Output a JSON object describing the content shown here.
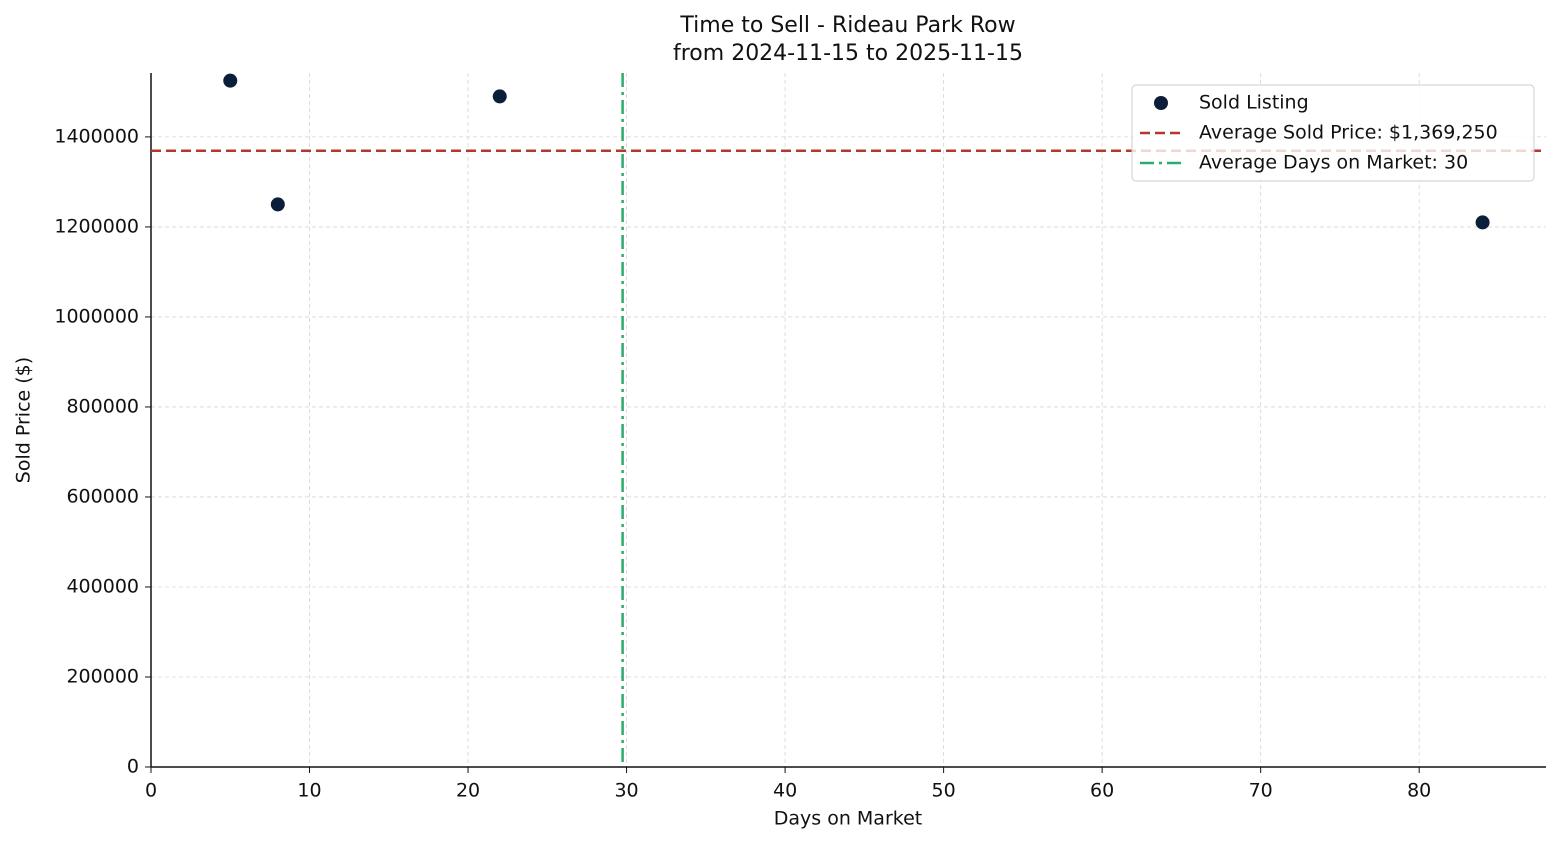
{
  "chart_data": {
    "type": "scatter",
    "title": "Time to Sell - Rideau Park Row",
    "subtitle": "from 2024-11-15 to 2025-11-15",
    "x_label": "Days on Market",
    "y_label": "Sold Price ($)",
    "series": [
      {
        "name": "Sold Listing",
        "color": "#0b1f3a",
        "x": [
          5,
          8,
          22,
          84
        ],
        "values": [
          1525000,
          1250000,
          1490000,
          1210000
        ]
      }
    ],
    "hlines": [
      {
        "value": 1369250,
        "label": "Average Sold Price: $1,369,250",
        "color": "#b5392a",
        "style": "dashed"
      }
    ],
    "vlines": [
      {
        "value": 29.75,
        "label": "Average Days on Market: 30",
        "color": "#2eaa6b",
        "style": "dashdot"
      }
    ],
    "xlim": [
      0,
      88
    ],
    "xticks": [
      0,
      10,
      20,
      30,
      40,
      50,
      60,
      70,
      80
    ],
    "ylim": [
      0,
      1542000
    ],
    "yticks": [
      0,
      200000,
      400000,
      600000,
      800000,
      1000000,
      1200000,
      1400000
    ],
    "grid": true,
    "legend": "upper-right"
  }
}
